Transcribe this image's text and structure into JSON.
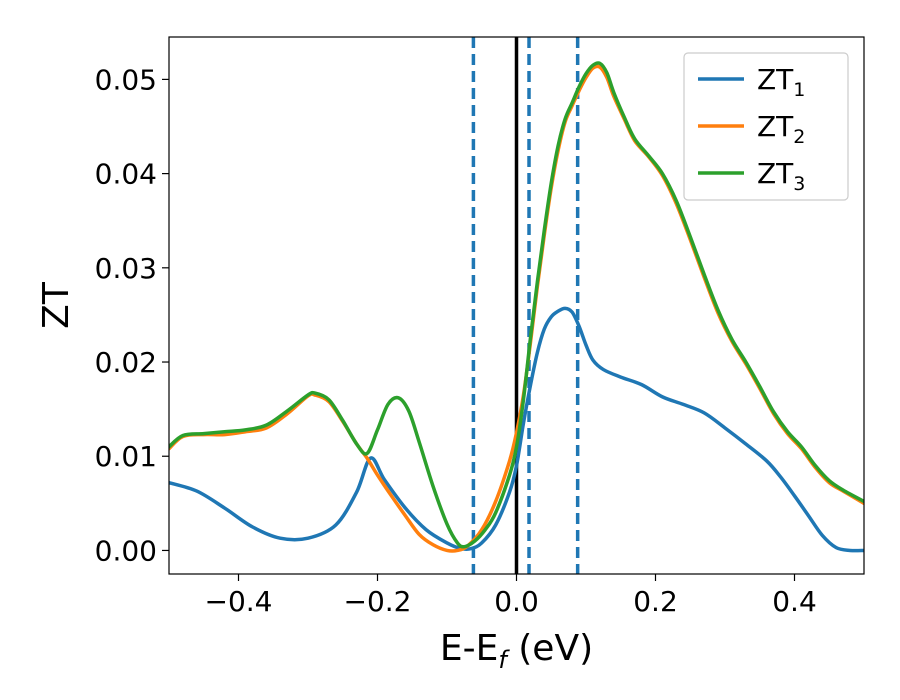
{
  "chart_data": {
    "type": "line",
    "title": "",
    "xlabel": {
      "main": "E-E",
      "sub": "f",
      "tail": " (eV)"
    },
    "ylabel": "ZT",
    "xlim": [
      -0.5,
      0.5
    ],
    "ylim": [
      -0.0025,
      0.0545
    ],
    "xticks": [
      -0.4,
      -0.2,
      0.0,
      0.2,
      0.4
    ],
    "xtick_labels": [
      "−0.4",
      "−0.2",
      "0.0",
      "0.2",
      "0.4"
    ],
    "yticks": [
      0.0,
      0.01,
      0.02,
      0.03,
      0.04,
      0.05
    ],
    "ytick_labels": [
      "0.00",
      "0.01",
      "0.02",
      "0.03",
      "0.04",
      "0.05"
    ],
    "grid": false,
    "legend_position": "top-right",
    "fermi_line": {
      "x": 0.0,
      "color": "#000000"
    },
    "dashed_vlines": {
      "x": [
        -0.062,
        0.018,
        0.088
      ],
      "color": "#1f77b4"
    },
    "series": [
      {
        "name": "ZT1",
        "label_main": "ZT",
        "label_sub": "1",
        "color": "#1f77b4",
        "points": [
          [
            -0.5,
            0.0072
          ],
          [
            -0.46,
            0.0063
          ],
          [
            -0.42,
            0.0045
          ],
          [
            -0.38,
            0.0025
          ],
          [
            -0.34,
            0.0013
          ],
          [
            -0.3,
            0.0013
          ],
          [
            -0.26,
            0.0027
          ],
          [
            -0.23,
            0.0062
          ],
          [
            -0.21,
            0.0098
          ],
          [
            -0.19,
            0.0075
          ],
          [
            -0.16,
            0.0045
          ],
          [
            -0.13,
            0.0022
          ],
          [
            -0.1,
            0.0008
          ],
          [
            -0.08,
            0.0002
          ],
          [
            -0.065,
            0.0002
          ],
          [
            -0.05,
            0.0008
          ],
          [
            -0.03,
            0.0027
          ],
          [
            -0.01,
            0.0062
          ],
          [
            0.0,
            0.009
          ],
          [
            0.01,
            0.0135
          ],
          [
            0.02,
            0.0175
          ],
          [
            0.03,
            0.021
          ],
          [
            0.04,
            0.0235
          ],
          [
            0.05,
            0.0248
          ],
          [
            0.06,
            0.0254
          ],
          [
            0.07,
            0.0257
          ],
          [
            0.08,
            0.0253
          ],
          [
            0.09,
            0.0238
          ],
          [
            0.1,
            0.0218
          ],
          [
            0.11,
            0.0202
          ],
          [
            0.125,
            0.0192
          ],
          [
            0.15,
            0.0184
          ],
          [
            0.18,
            0.0176
          ],
          [
            0.21,
            0.0163
          ],
          [
            0.24,
            0.0155
          ],
          [
            0.27,
            0.0146
          ],
          [
            0.3,
            0.013
          ],
          [
            0.33,
            0.0113
          ],
          [
            0.36,
            0.0095
          ],
          [
            0.38,
            0.0078
          ],
          [
            0.4,
            0.0058
          ],
          [
            0.42,
            0.0037
          ],
          [
            0.44,
            0.0016
          ],
          [
            0.46,
            0.0003
          ],
          [
            0.48,
            0.0
          ],
          [
            0.5,
            0.0
          ]
        ]
      },
      {
        "name": "ZT2",
        "label_main": "ZT",
        "label_sub": "2",
        "color": "#ff7f0e",
        "points": [
          [
            -0.5,
            0.0108
          ],
          [
            -0.48,
            0.0121
          ],
          [
            -0.45,
            0.0123
          ],
          [
            -0.42,
            0.0123
          ],
          [
            -0.39,
            0.0126
          ],
          [
            -0.36,
            0.013
          ],
          [
            -0.33,
            0.0145
          ],
          [
            -0.3,
            0.0164
          ],
          [
            -0.29,
            0.0165
          ],
          [
            -0.27,
            0.0158
          ],
          [
            -0.25,
            0.0137
          ],
          [
            -0.23,
            0.0113
          ],
          [
            -0.215,
            0.0098
          ],
          [
            -0.2,
            0.008
          ],
          [
            -0.18,
            0.0058
          ],
          [
            -0.16,
            0.0037
          ],
          [
            -0.14,
            0.0017
          ],
          [
            -0.12,
            0.0006
          ],
          [
            -0.1,
            0.0
          ],
          [
            -0.085,
            0.0
          ],
          [
            -0.07,
            0.0005
          ],
          [
            -0.05,
            0.0022
          ],
          [
            -0.03,
            0.0052
          ],
          [
            -0.01,
            0.0095
          ],
          [
            0.0,
            0.0125
          ],
          [
            0.01,
            0.0165
          ],
          [
            0.02,
            0.022
          ],
          [
            0.03,
            0.028
          ],
          [
            0.04,
            0.0335
          ],
          [
            0.05,
            0.0385
          ],
          [
            0.06,
            0.0425
          ],
          [
            0.07,
            0.0455
          ],
          [
            0.08,
            0.0472
          ],
          [
            0.09,
            0.0488
          ],
          [
            0.1,
            0.0502
          ],
          [
            0.11,
            0.0512
          ],
          [
            0.12,
            0.0513
          ],
          [
            0.13,
            0.0502
          ],
          [
            0.14,
            0.0482
          ],
          [
            0.155,
            0.0458
          ],
          [
            0.17,
            0.0435
          ],
          [
            0.19,
            0.0418
          ],
          [
            0.21,
            0.0398
          ],
          [
            0.23,
            0.0368
          ],
          [
            0.25,
            0.033
          ],
          [
            0.27,
            0.029
          ],
          [
            0.29,
            0.0252
          ],
          [
            0.31,
            0.0222
          ],
          [
            0.33,
            0.0198
          ],
          [
            0.35,
            0.0172
          ],
          [
            0.37,
            0.0145
          ],
          [
            0.39,
            0.0124
          ],
          [
            0.41,
            0.0108
          ],
          [
            0.43,
            0.0088
          ],
          [
            0.45,
            0.0072
          ],
          [
            0.47,
            0.0063
          ],
          [
            0.5,
            0.005
          ]
        ]
      },
      {
        "name": "ZT3",
        "label_main": "ZT",
        "label_sub": "3",
        "color": "#2ca02c",
        "points": [
          [
            -0.5,
            0.011
          ],
          [
            -0.48,
            0.0122
          ],
          [
            -0.45,
            0.0124
          ],
          [
            -0.42,
            0.0126
          ],
          [
            -0.39,
            0.0128
          ],
          [
            -0.36,
            0.0133
          ],
          [
            -0.33,
            0.0148
          ],
          [
            -0.3,
            0.0165
          ],
          [
            -0.29,
            0.0167
          ],
          [
            -0.27,
            0.016
          ],
          [
            -0.25,
            0.0138
          ],
          [
            -0.23,
            0.0113
          ],
          [
            -0.215,
            0.0103
          ],
          [
            -0.2,
            0.0128
          ],
          [
            -0.185,
            0.0155
          ],
          [
            -0.17,
            0.0162
          ],
          [
            -0.155,
            0.0148
          ],
          [
            -0.14,
            0.0115
          ],
          [
            -0.12,
            0.0068
          ],
          [
            -0.1,
            0.0028
          ],
          [
            -0.085,
            0.0008
          ],
          [
            -0.075,
            0.0004
          ],
          [
            -0.06,
            0.001
          ],
          [
            -0.045,
            0.0022
          ],
          [
            -0.03,
            0.004
          ],
          [
            -0.01,
            0.008
          ],
          [
            0.0,
            0.011
          ],
          [
            0.01,
            0.016
          ],
          [
            0.02,
            0.0225
          ],
          [
            0.03,
            0.0285
          ],
          [
            0.04,
            0.034
          ],
          [
            0.05,
            0.039
          ],
          [
            0.06,
            0.043
          ],
          [
            0.07,
            0.0458
          ],
          [
            0.08,
            0.0475
          ],
          [
            0.09,
            0.0492
          ],
          [
            0.1,
            0.0506
          ],
          [
            0.11,
            0.0515
          ],
          [
            0.12,
            0.0517
          ],
          [
            0.13,
            0.0507
          ],
          [
            0.14,
            0.0486
          ],
          [
            0.155,
            0.046
          ],
          [
            0.17,
            0.0437
          ],
          [
            0.19,
            0.0419
          ],
          [
            0.21,
            0.04
          ],
          [
            0.23,
            0.0371
          ],
          [
            0.25,
            0.0333
          ],
          [
            0.27,
            0.0293
          ],
          [
            0.29,
            0.0255
          ],
          [
            0.31,
            0.0224
          ],
          [
            0.33,
            0.02
          ],
          [
            0.35,
            0.0174
          ],
          [
            0.37,
            0.0147
          ],
          [
            0.39,
            0.0126
          ],
          [
            0.41,
            0.011
          ],
          [
            0.43,
            0.009
          ],
          [
            0.45,
            0.0074
          ],
          [
            0.47,
            0.0064
          ],
          [
            0.5,
            0.0052
          ]
        ]
      }
    ]
  }
}
